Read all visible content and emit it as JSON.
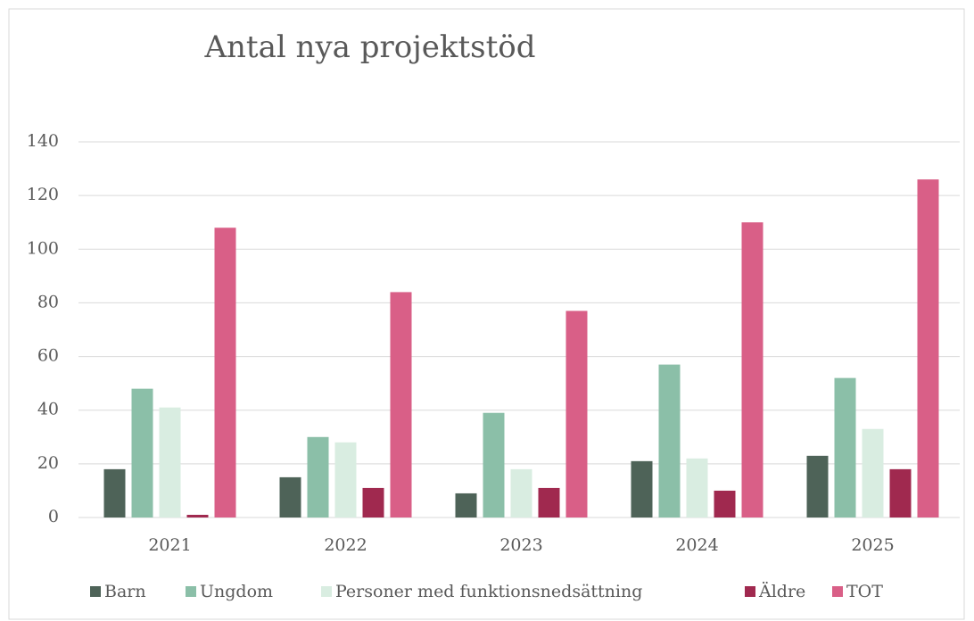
{
  "chart_data": {
    "type": "bar",
    "title": "Antal nya projektstöd",
    "categories": [
      "2021",
      "2022",
      "2023",
      "2024",
      "2025"
    ],
    "series": [
      {
        "name": "Barn",
        "color": "#4e6358",
        "values": [
          18,
          15,
          9,
          21,
          23
        ]
      },
      {
        "name": "Ungdom",
        "color": "#8bbfa8",
        "values": [
          48,
          30,
          39,
          57,
          52
        ]
      },
      {
        "name": "Personer med funktionsnedsättning",
        "color": "#d9ede1",
        "values": [
          41,
          28,
          18,
          22,
          33
        ]
      },
      {
        "name": "Äldre",
        "color": "#a0294f",
        "values": [
          1,
          11,
          11,
          10,
          18
        ]
      },
      {
        "name": "TOT",
        "color": "#d95f87",
        "values": [
          108,
          84,
          77,
          110,
          126
        ]
      }
    ],
    "ylim": [
      0,
      140
    ],
    "yticks": [
      0,
      20,
      40,
      60,
      80,
      100,
      120,
      140
    ],
    "grid": true,
    "legend": "bottom"
  }
}
